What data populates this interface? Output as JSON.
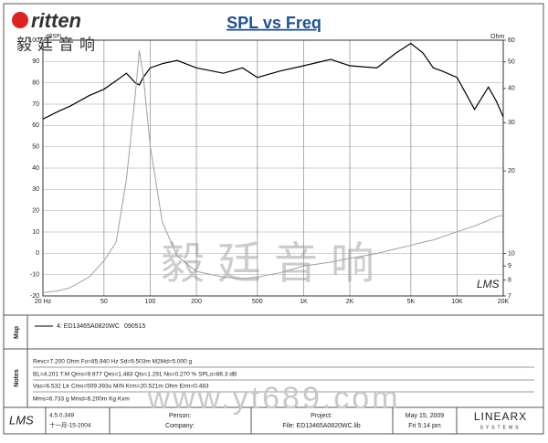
{
  "header": {
    "logo": "ritten",
    "logo_cn": "毅廷音响"
  },
  "chart_data": {
    "type": "line",
    "title": "SPL vs Freq",
    "ylabel": "dBSPL",
    "y2label": "Ohm",
    "grid": true,
    "xscale": "log",
    "y2scale": "log",
    "x": [
      20,
      25,
      30,
      40,
      50,
      60,
      70,
      80,
      85,
      90,
      100,
      120,
      150,
      200,
      300,
      400,
      500,
      700,
      1000,
      1500,
      2000,
      3000,
      4000,
      5000,
      6000,
      7000,
      8000,
      10000,
      13000,
      16000,
      18000,
      20000
    ],
    "series": [
      {
        "color": "#000000",
        "values": [
          63,
          66.5,
          69,
          74,
          77,
          81,
          84.5,
          80,
          79,
          82.5,
          87,
          89,
          90.5,
          87,
          84.5,
          87,
          82.5,
          85.5,
          88,
          91,
          88,
          87,
          94,
          98.5,
          94,
          87,
          85.5,
          82.5,
          67.5,
          78,
          71.5,
          64
        ]
      },
      {
        "color": "#a0a0a0",
        "axis": "y2",
        "values": [
          7.2,
          7.3,
          7.5,
          8.2,
          9.4,
          11,
          18.6,
          38,
          55,
          45,
          24.7,
          13,
          9.8,
          8.6,
          8.2,
          8.1,
          8.2,
          8.5,
          9,
          9.3,
          9.6,
          10,
          10.4,
          10.7,
          11,
          11.2,
          11.5,
          12,
          12.6,
          13.2,
          13.6,
          13.8
        ]
      }
    ],
    "xlim": [
      20,
      20000
    ],
    "xticks": [
      {
        "value": 20,
        "label": "20 Hz"
      },
      50,
      100,
      200,
      500,
      {
        "value": 1000,
        "label": "1K"
      },
      {
        "value": 2000,
        "label": "2K"
      },
      {
        "value": 5000,
        "label": "5K"
      },
      {
        "value": 10000,
        "label": "10K"
      },
      {
        "value": 20000,
        "label": "20K"
      }
    ],
    "ylim": [
      -20,
      100
    ],
    "yticks": [
      -20,
      -10,
      0,
      10,
      20,
      30,
      40,
      50,
      60,
      70,
      80,
      90,
      100
    ],
    "y2lim": [
      7,
      60
    ],
    "y2ticks": [
      7,
      8,
      9,
      10,
      20,
      30,
      40,
      50,
      60
    ],
    "watermark": "毅廷音响",
    "inner_logo": "LMS"
  },
  "map": {
    "label": "Map",
    "entry": "4: ED13465A0820WC",
    "date": "090515"
  },
  "notes": {
    "label": "Notes",
    "lines": [
      "Revc=7.200 Ohm  Fo=85.940 Hz  Sd=9.503m M2Md=5.000 g",
      "BL=4.201 T.M  Qms=9.977  Qes=1.483  Qts=1.291  No=0.270 %  SPLo=86.3 dB",
      "Vas=6.532 Ltr  Cms=509.393u M/N  Krm=20.521m Ohm  Erm=0.483",
      "Mms=6.733 g  Mmd=6.200m Kg  Kxm"
    ]
  },
  "watermark_url": "www.yt689.com",
  "footer": {
    "logo": "LMS",
    "version": "4.5.0.349",
    "build_date": "十一月-15-2004",
    "person": "Person:",
    "company": "Company:",
    "project": "Project:",
    "file": "File: ED13465A0820WC.lib",
    "date": "May 15, 2009",
    "time": "Fri  5:14 pm",
    "brand": "LINEARX",
    "brand_sub": "SYSTEMS"
  }
}
